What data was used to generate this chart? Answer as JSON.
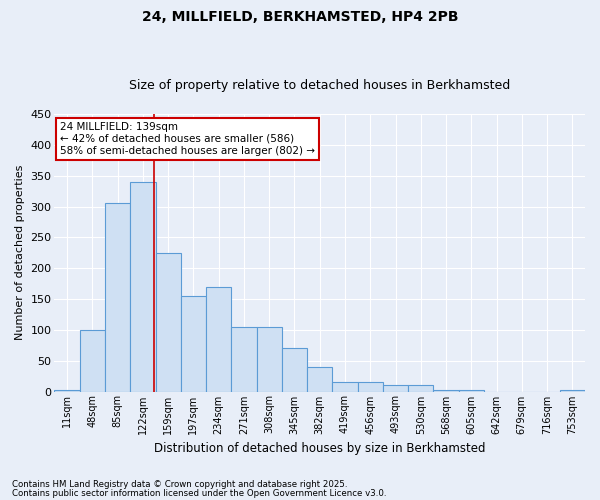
{
  "title": "24, MILLFIELD, BERKHAMSTED, HP4 2PB",
  "subtitle": "Size of property relative to detached houses in Berkhamsted",
  "xlabel": "Distribution of detached houses by size in Berkhamsted",
  "ylabel": "Number of detached properties",
  "bar_labels": [
    "11sqm",
    "48sqm",
    "85sqm",
    "122sqm",
    "159sqm",
    "197sqm",
    "234sqm",
    "271sqm",
    "308sqm",
    "345sqm",
    "382sqm",
    "419sqm",
    "456sqm",
    "493sqm",
    "530sqm",
    "568sqm",
    "605sqm",
    "642sqm",
    "679sqm",
    "716sqm",
    "753sqm"
  ],
  "bar_values": [
    2,
    100,
    305,
    340,
    225,
    155,
    170,
    105,
    105,
    70,
    40,
    15,
    15,
    10,
    10,
    2,
    2,
    0,
    0,
    0,
    2
  ],
  "bar_color": "#cfe0f3",
  "bar_edge_color": "#5b9bd5",
  "red_line_x": 3.45,
  "property_label": "24 MILLFIELD: 139sqm",
  "annotation_line1": "← 42% of detached houses are smaller (586)",
  "annotation_line2": "58% of semi-detached houses are larger (802) →",
  "annotation_box_color": "#ffffff",
  "annotation_box_edge": "#cc0000",
  "red_line_color": "#cc0000",
  "footnote1": "Contains HM Land Registry data © Crown copyright and database right 2025.",
  "footnote2": "Contains public sector information licensed under the Open Government Licence v3.0.",
  "ylim": [
    0,
    450
  ],
  "yticks": [
    0,
    50,
    100,
    150,
    200,
    250,
    300,
    350,
    400,
    450
  ],
  "bg_color": "#e8eef8",
  "plot_bg_color": "#e8eef8",
  "grid_color": "#ffffff",
  "title_fontsize": 10,
  "subtitle_fontsize": 9
}
